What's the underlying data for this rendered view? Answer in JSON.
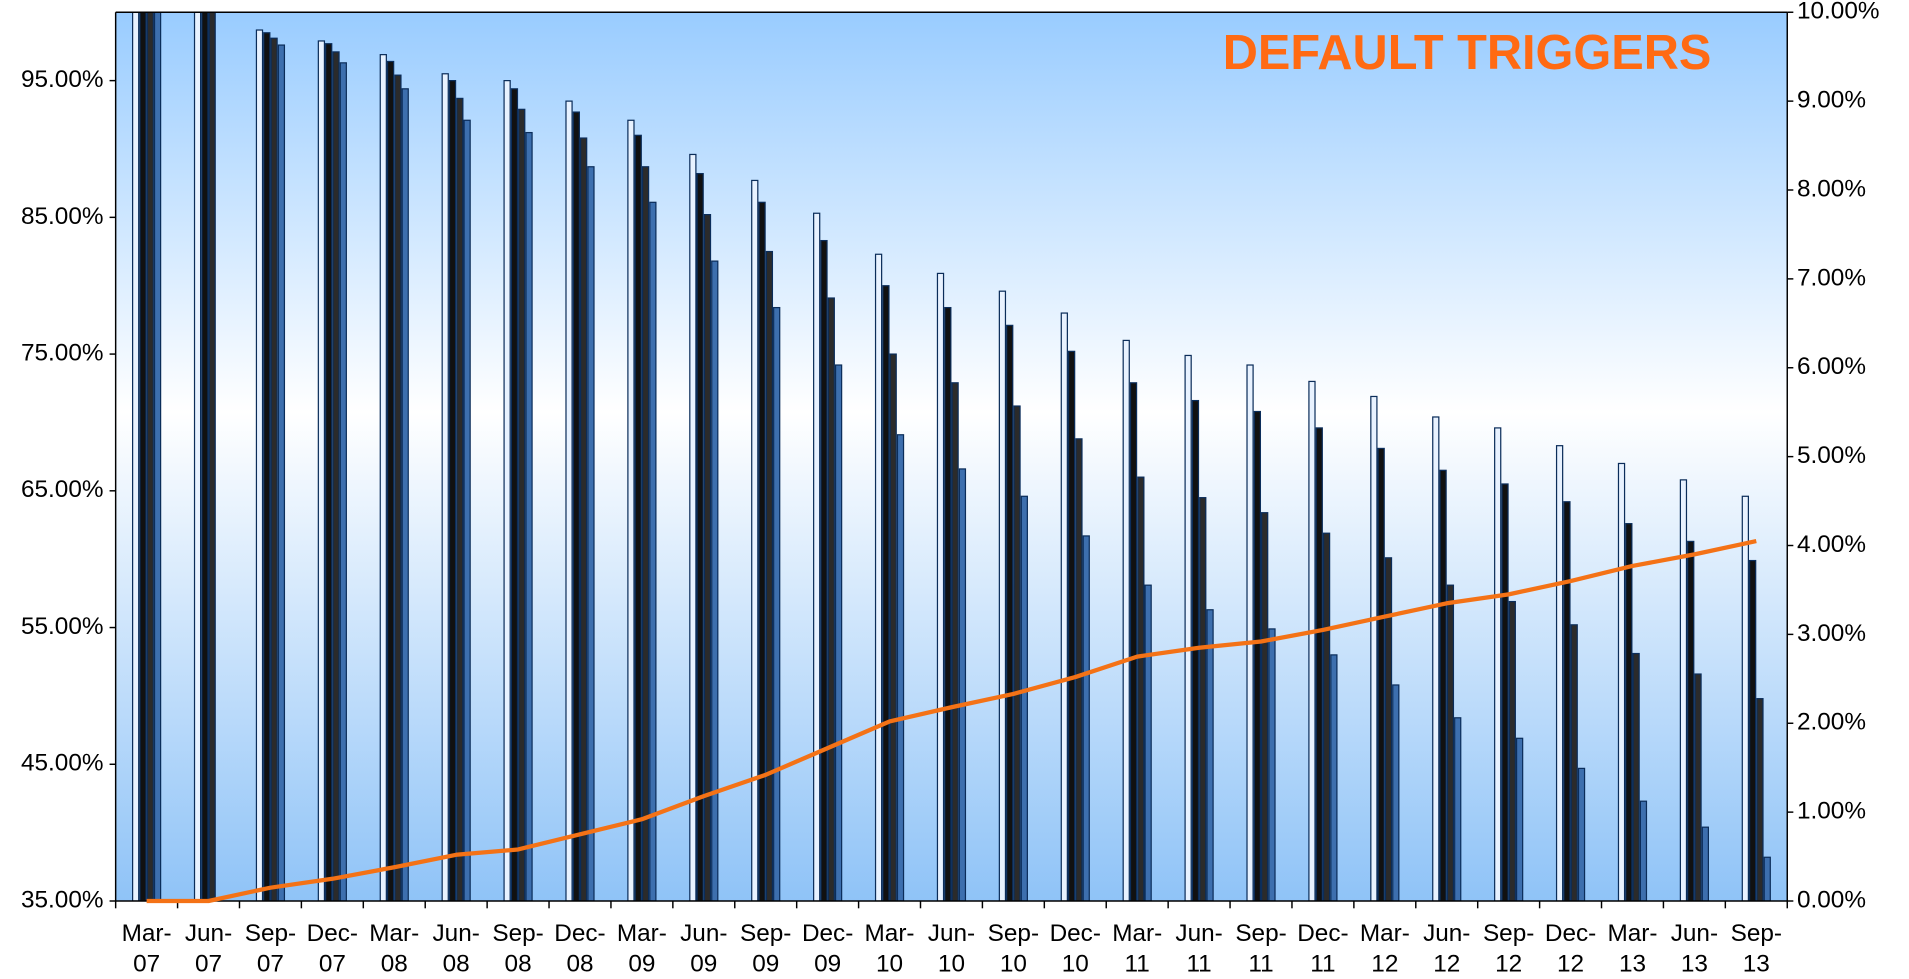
{
  "chart_data": {
    "type": "bar",
    "title": "DEFAULT TRIGGERS",
    "categories": [
      "Mar-07",
      "Jun-07",
      "Sep-07",
      "Dec-07",
      "Mar-08",
      "Jun-08",
      "Sep-08",
      "Dec-08",
      "Mar-09",
      "Jun-09",
      "Sep-09",
      "Dec-09",
      "Mar-10",
      "Jun-10",
      "Sep-10",
      "Dec-10",
      "Mar-11",
      "Jun-11",
      "Sep-11",
      "Dec-11",
      "Mar-12",
      "Jun-12",
      "Sep-12",
      "Dec-12",
      "Mar-13",
      "Jun-13",
      "Sep-13"
    ],
    "series": [
      {
        "color": "#e8f2ff",
        "values": [
          100,
          100,
          98.7,
          97.9,
          96.9,
          95.5,
          95.0,
          93.5,
          92.1,
          89.6,
          87.7,
          85.3,
          82.3,
          80.9,
          79.6,
          78.0,
          76.0,
          74.9,
          74.2,
          73.0,
          71.9,
          70.4,
          69.6,
          68.3,
          67.0,
          65.8,
          64.6
        ]
      },
      {
        "color": "#111111",
        "values": [
          100,
          100,
          98.5,
          97.7,
          96.4,
          95.0,
          94.4,
          92.7,
          91.0,
          88.2,
          86.1,
          83.3,
          80.0,
          78.4,
          77.1,
          75.2,
          72.9,
          71.6,
          70.8,
          69.6,
          68.1,
          66.5,
          65.5,
          64.2,
          62.6,
          61.3,
          59.9
        ]
      },
      {
        "color": "#2b2b2b",
        "values": [
          100,
          100,
          98.1,
          97.1,
          95.4,
          93.7,
          92.9,
          90.8,
          88.7,
          85.2,
          82.5,
          79.1,
          75.0,
          72.9,
          71.2,
          68.8,
          66.0,
          64.5,
          63.4,
          61.9,
          60.1,
          58.1,
          56.9,
          55.2,
          53.1,
          51.6,
          49.8
        ]
      },
      {
        "color": "#3d6fae",
        "values": [
          100,
          null,
          97.6,
          96.3,
          94.4,
          92.1,
          91.2,
          88.7,
          86.1,
          81.8,
          78.4,
          74.2,
          69.1,
          66.6,
          64.6,
          61.7,
          58.1,
          56.3,
          54.9,
          53.0,
          50.8,
          48.4,
          46.9,
          44.7,
          42.3,
          40.4,
          38.2
        ]
      },
      {
        "type": "line",
        "axis": "y2",
        "color": "#f47216",
        "values": [
          0,
          0,
          0.15,
          0.25,
          0.38,
          0.52,
          0.58,
          0.75,
          0.92,
          1.18,
          1.42,
          1.72,
          2.02,
          2.18,
          2.33,
          2.52,
          2.75,
          2.85,
          2.92,
          3.05,
          3.2,
          3.35,
          3.45,
          3.6,
          3.77,
          3.9,
          4.05
        ]
      }
    ],
    "ylim": [
      35,
      100
    ],
    "yticks": [
      {
        "value": 35,
        "label": "35.00%"
      },
      {
        "value": 45,
        "label": "45.00%"
      },
      {
        "value": 55,
        "label": "55.00%"
      },
      {
        "value": 65,
        "label": "65.00%"
      },
      {
        "value": 75,
        "label": "75.00%"
      },
      {
        "value": 85,
        "label": "85.00%"
      },
      {
        "value": 95,
        "label": "95.00%"
      }
    ],
    "y2lim": [
      0,
      10
    ],
    "y2ticks": [
      {
        "value": 0,
        "label": "0.00%"
      },
      {
        "value": 1,
        "label": "1.00%"
      },
      {
        "value": 2,
        "label": "2.00%"
      },
      {
        "value": 3,
        "label": "3.00%"
      },
      {
        "value": 4,
        "label": "4.00%"
      },
      {
        "value": 5,
        "label": "5.00%"
      },
      {
        "value": 6,
        "label": "6.00%"
      },
      {
        "value": 7,
        "label": "7.00%"
      },
      {
        "value": 8,
        "label": "8.00%"
      },
      {
        "value": 9,
        "label": "9.00%"
      },
      {
        "value": 10,
        "label": "10.00%"
      }
    ],
    "grid": false
  }
}
